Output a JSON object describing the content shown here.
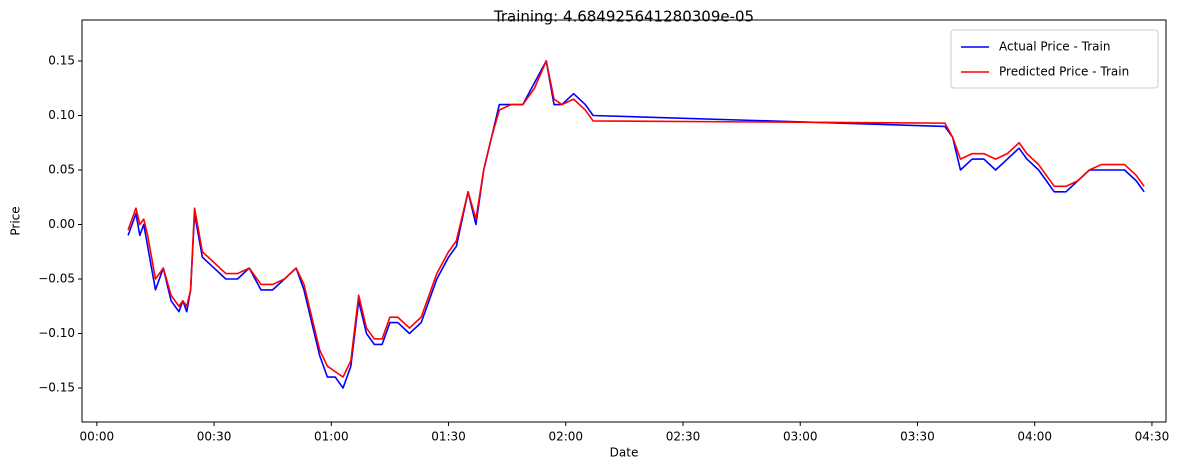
{
  "chart_data": {
    "type": "line",
    "title": "Training: 4.684925641280309e-05",
    "x_label": "Date",
    "y_label": "Price",
    "x": [
      8,
      9,
      10,
      11,
      12,
      13,
      14,
      15,
      17,
      19,
      21,
      22,
      23,
      24,
      25,
      27,
      30,
      33,
      36,
      39,
      42,
      45,
      48,
      51,
      53,
      55,
      57,
      59,
      61,
      63,
      65,
      67,
      69,
      71,
      73,
      75,
      77,
      80,
      83,
      85,
      87,
      90,
      92,
      95,
      97,
      99,
      101,
      103,
      106,
      109,
      112,
      115,
      117,
      119,
      122,
      125,
      127,
      217,
      219,
      221,
      224,
      227,
      230,
      233,
      236,
      238,
      241,
      243,
      245,
      248,
      251,
      254,
      257,
      260,
      263,
      266,
      268
    ],
    "series": [
      {
        "name": "Actual Price - Train",
        "color": "#0000ff",
        "values": [
          -0.01,
          0.0,
          0.01,
          -0.01,
          0.0,
          -0.02,
          -0.04,
          -0.06,
          -0.04,
          -0.07,
          -0.08,
          -0.07,
          -0.08,
          -0.06,
          0.01,
          -0.03,
          -0.04,
          -0.05,
          -0.05,
          -0.04,
          -0.06,
          -0.06,
          -0.05,
          -0.04,
          -0.06,
          -0.09,
          -0.12,
          -0.14,
          -0.14,
          -0.15,
          -0.13,
          -0.07,
          -0.1,
          -0.11,
          -0.11,
          -0.09,
          -0.09,
          -0.1,
          -0.09,
          -0.07,
          -0.05,
          -0.03,
          -0.02,
          0.03,
          0.0,
          0.05,
          0.08,
          0.11,
          0.11,
          0.11,
          0.13,
          0.15,
          0.11,
          0.11,
          0.12,
          0.11,
          0.1,
          0.09,
          0.08,
          0.05,
          0.06,
          0.06,
          0.05,
          0.06,
          0.07,
          0.06,
          0.05,
          0.04,
          0.03,
          0.03,
          0.04,
          0.05,
          0.05,
          0.05,
          0.05,
          0.04,
          0.03
        ]
      },
      {
        "name": "Predicted Price - Train",
        "color": "#ff0000",
        "values": [
          -0.005,
          0.005,
          0.015,
          0.0,
          0.005,
          -0.01,
          -0.03,
          -0.05,
          -0.04,
          -0.065,
          -0.075,
          -0.07,
          -0.075,
          -0.06,
          0.015,
          -0.025,
          -0.035,
          -0.045,
          -0.045,
          -0.04,
          -0.055,
          -0.055,
          -0.05,
          -0.04,
          -0.055,
          -0.085,
          -0.115,
          -0.13,
          -0.135,
          -0.14,
          -0.125,
          -0.065,
          -0.095,
          -0.105,
          -0.105,
          -0.085,
          -0.085,
          -0.095,
          -0.085,
          -0.065,
          -0.045,
          -0.025,
          -0.015,
          0.03,
          0.005,
          0.05,
          0.08,
          0.105,
          0.11,
          0.11,
          0.125,
          0.15,
          0.115,
          0.11,
          0.115,
          0.105,
          0.095,
          0.093,
          0.08,
          0.06,
          0.065,
          0.065,
          0.06,
          0.065,
          0.075,
          0.065,
          0.055,
          0.045,
          0.035,
          0.035,
          0.04,
          0.05,
          0.055,
          0.055,
          0.055,
          0.045,
          0.035
        ]
      }
    ],
    "xlim": [
      -3.8,
      273.6
    ],
    "xticks": [
      {
        "value": 0,
        "label": "00:00"
      },
      {
        "value": 30,
        "label": "00:30"
      },
      {
        "value": 60,
        "label": "01:00"
      },
      {
        "value": 90,
        "label": "01:30"
      },
      {
        "value": 120,
        "label": "02:00"
      },
      {
        "value": 150,
        "label": "02:30"
      },
      {
        "value": 180,
        "label": "03:00"
      },
      {
        "value": 210,
        "label": "03:30"
      },
      {
        "value": 240,
        "label": "04:00"
      },
      {
        "value": 270,
        "label": "04:30"
      }
    ],
    "ylim": [
      -0.1812,
      0.1876
    ],
    "yticks": [
      {
        "value": -0.15,
        "label": "−0.15"
      },
      {
        "value": -0.1,
        "label": "−0.10"
      },
      {
        "value": -0.05,
        "label": "−0.05"
      },
      {
        "value": 0,
        "label": "0.00"
      },
      {
        "value": 0.05,
        "label": "0.05"
      },
      {
        "value": 0.1,
        "label": "0.10"
      },
      {
        "value": 0.15,
        "label": "0.15"
      }
    ],
    "grid": false,
    "legend": "upper right"
  }
}
